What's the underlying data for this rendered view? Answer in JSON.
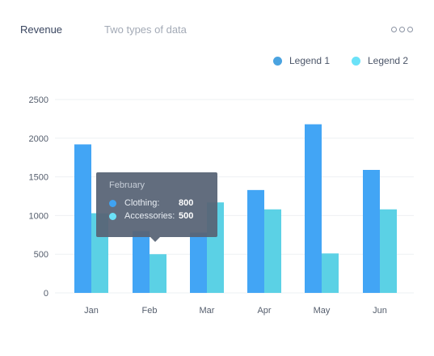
{
  "header": {
    "title": "Revenue",
    "subtitle": "Two types of data"
  },
  "icons": {
    "more": "more-icon"
  },
  "colors": {
    "series1": "#42a5f5",
    "series2": "#5bd1e5",
    "tooltip_bg": "#586476"
  },
  "tooltip": {
    "title": "February",
    "rows": [
      {
        "label": "Clothing:",
        "value": "800",
        "color": "#3fa3f2"
      },
      {
        "label": "Accessories:",
        "value": "500",
        "color": "#6be2f8"
      }
    ]
  },
  "chart_data": {
    "type": "bar",
    "title": "Revenue",
    "subtitle": "Two types of data",
    "categories": [
      "Jan",
      "Feb",
      "Mar",
      "Apr",
      "May",
      "Jun"
    ],
    "series": [
      {
        "name": "Legend 1",
        "values": [
          1920,
          800,
          780,
          1330,
          2180,
          1590
        ],
        "color": "#42a5f5"
      },
      {
        "name": "Legend 2",
        "values": [
          1030,
          500,
          1170,
          1080,
          510,
          1080
        ],
        "color": "#5bd1e5"
      }
    ],
    "ylim": [
      0,
      2500
    ],
    "yticks": [
      0,
      500,
      1000,
      1500,
      2000,
      2500
    ],
    "grid": true,
    "legend_position": "top-right",
    "legend_labels": [
      "Legend 1",
      "Legend 2"
    ],
    "legend_colors": [
      "#4aa3e0",
      "#6be2f8"
    ]
  }
}
